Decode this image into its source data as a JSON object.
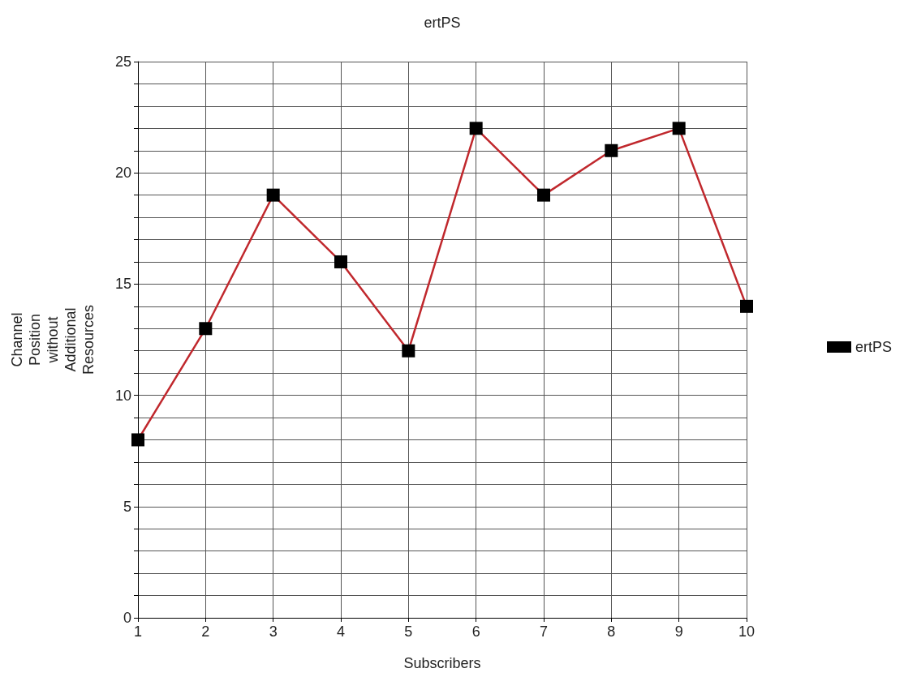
{
  "chart_data": {
    "type": "line",
    "title": "ertPS",
    "xlabel": "Subscribers",
    "ylabel": "Channel Position without Additional Resources",
    "x": [
      1,
      2,
      3,
      4,
      5,
      6,
      7,
      8,
      9,
      10
    ],
    "series": [
      {
        "name": "ertPS",
        "color": "#c0282d",
        "values": [
          8,
          13,
          19,
          16,
          12,
          22,
          19,
          21,
          22,
          14
        ]
      }
    ],
    "xlim": [
      1,
      10
    ],
    "xticks": [
      1,
      2,
      3,
      4,
      5,
      6,
      7,
      8,
      9,
      10
    ],
    "ylim": [
      0,
      25
    ],
    "yticks": [
      0,
      {
        "value": 1,
        "label": null
      },
      {
        "value": 2,
        "label": null
      },
      {
        "value": 3,
        "label": null
      },
      {
        "value": 4,
        "label": null
      },
      5,
      {
        "value": 6,
        "label": null
      },
      {
        "value": 7,
        "label": null
      },
      {
        "value": 8,
        "label": null
      },
      {
        "value": 9,
        "label": null
      },
      10,
      {
        "value": 11,
        "label": null
      },
      {
        "value": 12,
        "label": null
      },
      {
        "value": 13,
        "label": null
      },
      {
        "value": 14,
        "label": null
      },
      15,
      {
        "value": 16,
        "label": null
      },
      {
        "value": 17,
        "label": null
      },
      {
        "value": 18,
        "label": null
      },
      {
        "value": 19,
        "label": null
      },
      20,
      {
        "value": 21,
        "label": null
      },
      {
        "value": 22,
        "label": null
      },
      {
        "value": 23,
        "label": null
      },
      {
        "value": 24,
        "label": null
      },
      25
    ],
    "grid": true,
    "legend": "right",
    "marker": "square",
    "line_style": "solid"
  }
}
